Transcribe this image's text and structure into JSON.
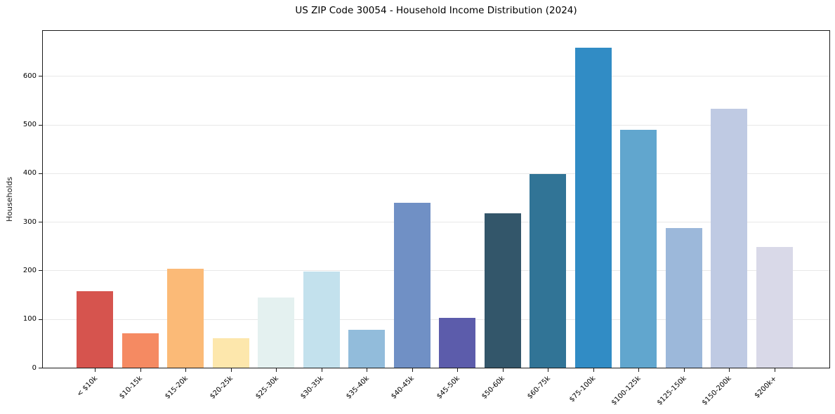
{
  "chart_data": {
    "type": "bar",
    "title": "US ZIP Code 30054 - Household Income Distribution (2024)",
    "xlabel": "",
    "ylabel": "Households",
    "categories": [
      "< $10k",
      "$10-15k",
      "$15-20k",
      "$20-25k",
      "$25-30k",
      "$30-35k",
      "$35-40k",
      "$40-45k",
      "$45-50k",
      "$50-60k",
      "$60-75k",
      "$75-100k",
      "$100-125k",
      "$125-150k",
      "$150-200k",
      "$200k+"
    ],
    "values": [
      158,
      71,
      204,
      60,
      144,
      198,
      78,
      340,
      102,
      318,
      398,
      658,
      490,
      288,
      533,
      248
    ],
    "bar_colors": [
      "#d6544e",
      "#f58a62",
      "#fbba77",
      "#fde7ac",
      "#e4f1f0",
      "#c3e1ed",
      "#92bcdb",
      "#7090c5",
      "#5c5cab",
      "#33566a",
      "#317496",
      "#318cc5",
      "#61a6ce",
      "#9cb8da",
      "#bfcae3",
      "#d9d9e8"
    ],
    "yticks": [
      0,
      100,
      200,
      300,
      400,
      500,
      600
    ],
    "ylim": [
      0,
      693
    ],
    "grid": "horizontal",
    "gridline_color": "#e8e8e8",
    "legend": "none",
    "background": "#ffffff"
  }
}
